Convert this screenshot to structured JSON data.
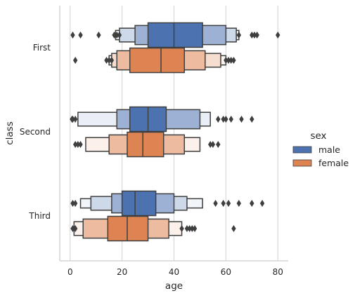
{
  "chart_data": {
    "type": "boxen",
    "title": "",
    "xlabel": "age",
    "ylabel": "class",
    "xlim": [
      -4,
      84
    ],
    "xticks": [
      0,
      20,
      40,
      60,
      80
    ],
    "grid": "vertical",
    "categories": [
      "First",
      "Second",
      "Third"
    ],
    "legend": {
      "title": "sex",
      "placement": "right"
    },
    "series": [
      {
        "name": "male",
        "color": "#4c72b0",
        "groups": [
          {
            "category": "First",
            "median": 40,
            "boxes": [
              [
                30,
                51
              ],
              [
                25,
                60
              ],
              [
                19,
                64
              ],
              [
                17.5,
                65
              ]
            ],
            "outliers": [
              1,
              4,
              11,
              17,
              18,
              19,
              65,
              70,
              71,
              72,
              80
            ]
          },
          {
            "category": "Second",
            "median": 30,
            "boxes": [
              [
                23,
                37
              ],
              [
                18,
                50
              ],
              [
                3,
                54
              ]
            ],
            "outliers": [
              0.7,
              1,
              2,
              57,
              59,
              60,
              62,
              66,
              70
            ]
          },
          {
            "category": "Third",
            "median": 25,
            "boxes": [
              [
                20,
                33
              ],
              [
                16,
                40
              ],
              [
                8,
                45
              ],
              [
                4,
                51
              ]
            ],
            "outliers": [
              1,
              2,
              56,
              59,
              61,
              65,
              70,
              74
            ]
          }
        ]
      },
      {
        "name": "female",
        "color": "#dd8452",
        "groups": [
          {
            "category": "First",
            "median": 35,
            "boxes": [
              [
                23,
                44
              ],
              [
                18,
                52
              ],
              [
                16,
                58
              ],
              [
                15,
                60
              ]
            ],
            "outliers": [
              2,
              14,
              15,
              16,
              60,
              61,
              62,
              63
            ]
          },
          {
            "category": "Second",
            "median": 28,
            "boxes": [
              [
                22,
                36
              ],
              [
                15,
                44
              ],
              [
                6,
                50
              ]
            ],
            "outliers": [
              2,
              3,
              4,
              54,
              55,
              57
            ]
          },
          {
            "category": "Third",
            "median": 22,
            "boxes": [
              [
                14.5,
                30
              ],
              [
                5,
                38
              ],
              [
                1.5,
                43
              ]
            ],
            "outliers": [
              1,
              2,
              43,
              45,
              46,
              47,
              48,
              63
            ]
          }
        ]
      }
    ]
  }
}
